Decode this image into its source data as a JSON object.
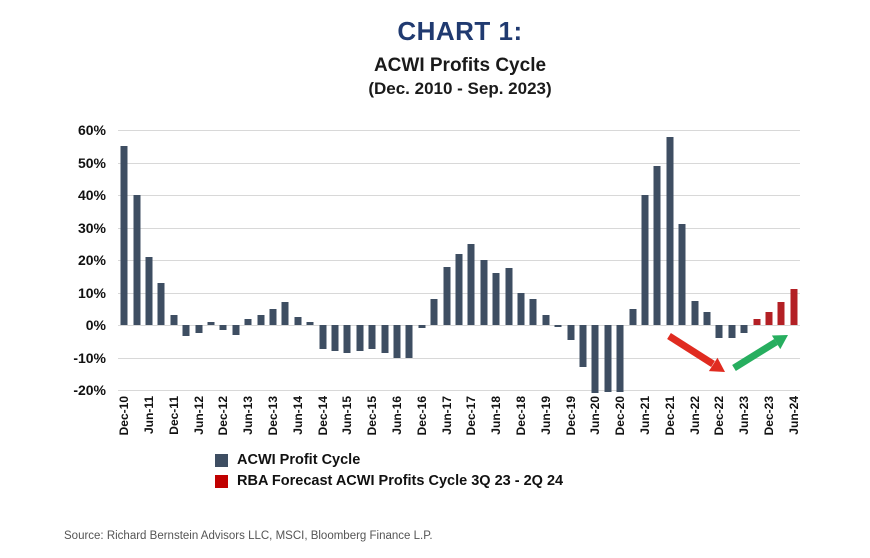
{
  "header": {
    "chart_label": "CHART 1:",
    "title": "ACWI Profits Cycle",
    "subtitle": "(Dec. 2010 - Sep. 2023)"
  },
  "colors": {
    "title_blue": "#203a70",
    "actual_bar": "#3e4e62",
    "forecast_bar": "#b32025",
    "legend_forecast_red": "#c00000",
    "arrow_red": "#e02b20",
    "arrow_green": "#27ae5f",
    "gridline": "#d8d8d8"
  },
  "chart_data": {
    "type": "bar",
    "title": "ACWI Profits Cycle",
    "date_range": "(Dec. 2010 - Sep. 2023)",
    "xlabel": "",
    "ylabel": "",
    "ylim": [
      -22,
      60
    ],
    "y_ticks": [
      60,
      50,
      40,
      30,
      20,
      10,
      0,
      -10,
      -20
    ],
    "y_tick_suffix": "%",
    "grid": true,
    "legend_position": "bottom-left",
    "x_label_every_n": 2,
    "categories": [
      "Dec-10",
      "Mar-11",
      "Jun-11",
      "Sep-11",
      "Dec-11",
      "Mar-12",
      "Jun-12",
      "Sep-12",
      "Dec-12",
      "Mar-13",
      "Jun-13",
      "Sep-13",
      "Dec-13",
      "Mar-14",
      "Jun-14",
      "Sep-14",
      "Dec-14",
      "Mar-15",
      "Jun-15",
      "Sep-15",
      "Dec-15",
      "Mar-16",
      "Jun-16",
      "Sep-16",
      "Dec-16",
      "Mar-17",
      "Jun-17",
      "Sep-17",
      "Dec-17",
      "Mar-18",
      "Jun-18",
      "Sep-18",
      "Dec-18",
      "Mar-19",
      "Jun-19",
      "Sep-19",
      "Dec-19",
      "Mar-20",
      "Jun-20",
      "Sep-20",
      "Dec-20",
      "Mar-21",
      "Jun-21",
      "Sep-21",
      "Dec-21",
      "Mar-22",
      "Jun-22",
      "Sep-22",
      "Dec-22",
      "Mar-23",
      "Jun-23",
      "Sep-23",
      "Dec-23",
      "Mar-24",
      "Jun-24"
    ],
    "values": [
      55,
      40,
      21,
      13,
      3,
      -3.5,
      -2.5,
      1,
      -1.5,
      -3,
      2,
      3,
      5,
      7,
      2.5,
      1,
      -7.5,
      -8,
      -8.5,
      -8,
      -7.5,
      -8.5,
      -10,
      -10,
      -1,
      8,
      18,
      22,
      25,
      20,
      16,
      17.5,
      10,
      8,
      3,
      -0.5,
      -4.5,
      -13,
      -21,
      -20.5,
      -20.5,
      5,
      40,
      49,
      58,
      31,
      7.5,
      4,
      -4,
      -4,
      -2.5,
      2,
      4,
      7,
      11
    ],
    "series": [
      {
        "name": "ACWI Profit Cycle",
        "color": "#3e4e62",
        "start_index": 0,
        "end_index": 50
      },
      {
        "name": "RBA Forecast ACWI Profits Cycle 3Q 23 - 2Q 24",
        "color": "#b32025",
        "start_index": 51,
        "end_index": 54
      }
    ],
    "annotations": [
      {
        "type": "arrow",
        "direction": "down-right",
        "color_key": "arrow_red"
      },
      {
        "type": "arrow",
        "direction": "up-right",
        "color_key": "arrow_green"
      }
    ]
  },
  "source": {
    "text": "Source: Richard Bernstein Advisors LLC, MSCI, Bloomberg Finance L.P."
  }
}
